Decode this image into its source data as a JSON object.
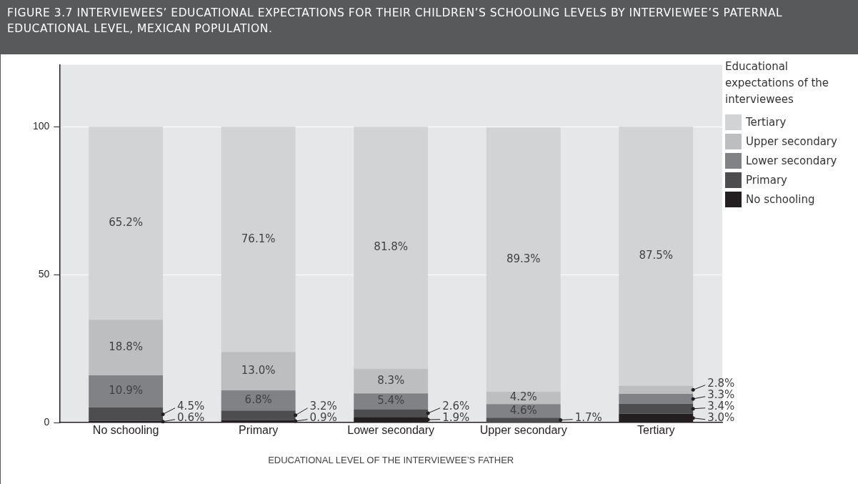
{
  "chart_data": {
    "type": "bar",
    "stacked": true,
    "title": "FIGURE 3.7  INTERVIEWEES’ EDUCATIONAL EXPECTATIONS FOR THEIR CHILDREN’S SCHOOLING LEVELS BY INTERVIEWEE’S PATERNAL EDUCATIONAL LEVEL, MEXICAN POPULATION.",
    "xlabel": "EDUCATIONAL LEVEL OF THE INTERVIEWEE’S FATHER",
    "legend_title": "Educational expectations of the interviewees",
    "categories": [
      "No schooling",
      "Primary",
      "Lower secondary",
      "Upper secondary",
      "Tertiary"
    ],
    "series": [
      {
        "name": "No schooling",
        "color": "#231f20",
        "values": [
          0.6,
          0.9,
          1.9,
          null,
          3.0
        ],
        "value_labels": [
          "0.6%",
          "0.9%",
          "1.9%",
          null,
          "3.0%"
        ]
      },
      {
        "name": "Primary",
        "color": "#4d4d4f",
        "values": [
          4.5,
          3.2,
          2.6,
          1.7,
          3.4
        ],
        "value_labels": [
          "4.5%",
          "3.2%",
          "2.6%",
          "1.7%",
          "3.4%"
        ]
      },
      {
        "name": "Lower secondary",
        "color": "#808285",
        "values": [
          10.9,
          6.8,
          5.4,
          4.6,
          3.3
        ],
        "value_labels": [
          "10.9%",
          "6.8%",
          "5.4%",
          "4.6%",
          "3.3%"
        ]
      },
      {
        "name": "Upper secondary",
        "color": "#bcbec0",
        "values": [
          18.8,
          13.0,
          8.3,
          4.2,
          2.8
        ],
        "value_labels": [
          "18.8%",
          "13.0%",
          "8.3%",
          "4.2%",
          "2.8%"
        ]
      },
      {
        "name": "Tertiary",
        "color": "#d1d3d4",
        "values": [
          65.2,
          76.1,
          81.8,
          89.3,
          87.5
        ],
        "value_labels": [
          "65.2%",
          "76.1%",
          "81.8%",
          "89.3%",
          "87.5%"
        ]
      }
    ],
    "ylim": [
      0,
      121
    ],
    "yticks": [
      0,
      50,
      100
    ],
    "grid": "y",
    "legend": "top right"
  }
}
